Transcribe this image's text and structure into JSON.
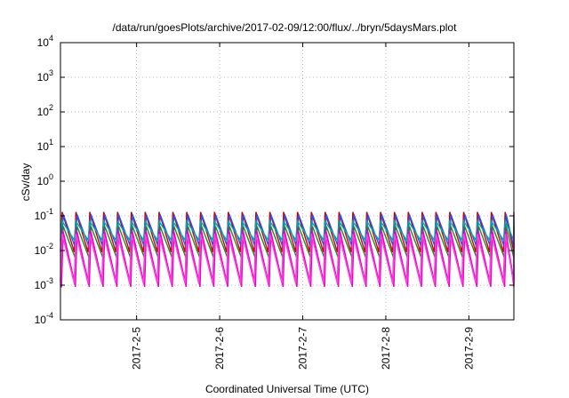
{
  "chart_data": {
    "type": "line",
    "title": "/data/run/goesPlots/archive/2017-02-09/12:00/flux/../bryn/5daysMars.plot",
    "xlabel": "Coordinated Universal Time (UTC)",
    "ylabel": "cSv/day",
    "x_type": "date",
    "xlim": [
      "2017-02-04T02:00",
      "2017-02-09T13:00"
    ],
    "x_ticks": [
      "2017-2-5",
      "2017-2-6",
      "2017-2-7",
      "2017-2-8",
      "2017-2-9"
    ],
    "x_tick_values": [
      "2017-02-05",
      "2017-02-06",
      "2017-02-07",
      "2017-02-08",
      "2017-02-09"
    ],
    "y_scale": "log",
    "ylim": [
      0.0001,
      10000
    ],
    "y_ticks": [
      {
        "value": 0.0001,
        "base": "10",
        "exp": "-4"
      },
      {
        "value": 0.001,
        "base": "10",
        "exp": "-3"
      },
      {
        "value": 0.01,
        "base": "10",
        "exp": "-2"
      },
      {
        "value": 0.1,
        "base": "10",
        "exp": "-1"
      },
      {
        "value": 1,
        "base": "10",
        "exp": "0"
      },
      {
        "value": 10,
        "base": "10",
        "exp": "1"
      },
      {
        "value": 100,
        "base": "10",
        "exp": "2"
      },
      {
        "value": 1000,
        "base": "10",
        "exp": "3"
      },
      {
        "value": 10000,
        "base": "10",
        "exp": "4"
      }
    ],
    "grid": true,
    "legend": "none",
    "sawtooth_cycles_per_day": 6,
    "series": [
      {
        "color": "#cc0000",
        "peak": 0.13,
        "trough": 0.009
      },
      {
        "color": "#2255ee",
        "peak": 0.11,
        "trough": 0.012
      },
      {
        "color": "#00aaaa",
        "peak": 0.07,
        "trough": 0.02
      },
      {
        "color": "#228822",
        "peak": 0.05,
        "trough": 0.006
      },
      {
        "color": "#8833aa",
        "peak": 0.045,
        "trough": 0.0013
      },
      {
        "color": "#ee00cc",
        "peak": 0.035,
        "trough": 0.0009
      },
      {
        "color": "#ff44dd",
        "peak": 0.03,
        "trough": 0.0011
      }
    ]
  }
}
